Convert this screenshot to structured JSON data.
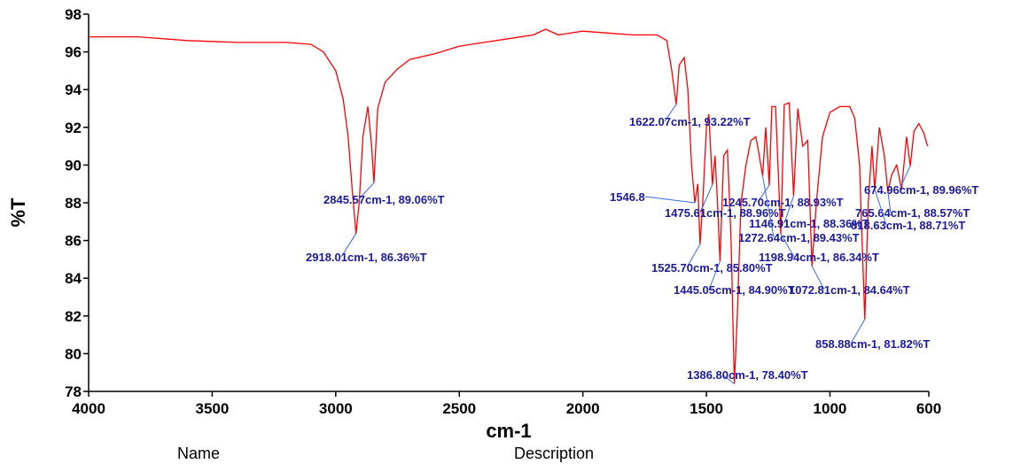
{
  "chart_data": {
    "type": "line",
    "xlabel": "cm-1",
    "ylabel": "%T",
    "footer_labels": [
      "Name",
      "Description"
    ],
    "xlim": [
      4000,
      600
    ],
    "xticks": [
      4000,
      3500,
      3000,
      2500,
      2000,
      1500,
      1000,
      600
    ],
    "ylim": [
      78,
      98
    ],
    "yticks": [
      78,
      80,
      82,
      84,
      86,
      88,
      90,
      92,
      94,
      96,
      98
    ],
    "x": [
      4000,
      3800,
      3600,
      3400,
      3200,
      3100,
      3050,
      3000,
      2970,
      2950,
      2935,
      2918.01,
      2905,
      2890,
      2870,
      2855,
      2845.57,
      2830,
      2800,
      2750,
      2700,
      2600,
      2500,
      2400,
      2300,
      2200,
      2150,
      2100,
      2000,
      1900,
      1800,
      1700,
      1660,
      1640,
      1622.07,
      1610,
      1590,
      1575,
      1560,
      1546.8,
      1535,
      1525.7,
      1515,
      1500,
      1490,
      1475.61,
      1465,
      1455,
      1445.05,
      1430,
      1415,
      1400,
      1386.8,
      1375,
      1360,
      1340,
      1320,
      1300,
      1290,
      1272.64,
      1260,
      1245.7,
      1235,
      1220,
      1198.94,
      1185,
      1165,
      1146.91,
      1130,
      1110,
      1090,
      1072.81,
      1055,
      1030,
      1000,
      960,
      920,
      900,
      880,
      870,
      858.88,
      845,
      830,
      818.63,
      800,
      780,
      765.64,
      750,
      730,
      710,
      690,
      674.96,
      660,
      640,
      620,
      605
    ],
    "series": [
      {
        "color": "#ff0000",
        "values": [
          96.8,
          96.8,
          96.6,
          96.5,
          96.5,
          96.4,
          96.0,
          95.0,
          93.5,
          91.5,
          89,
          86.36,
          88,
          91.5,
          93.1,
          91,
          89.06,
          93,
          94.4,
          95.1,
          95.6,
          95.9,
          96.3,
          96.5,
          96.7,
          96.9,
          97.2,
          96.9,
          97.1,
          97.0,
          96.9,
          96.9,
          96.6,
          95,
          93.22,
          95.3,
          95.7,
          94,
          90,
          88.0,
          89,
          85.8,
          88,
          92.0,
          92.7,
          88.96,
          90.5,
          88,
          84.9,
          90.5,
          90.8,
          86,
          78.4,
          82,
          88,
          90,
          91.3,
          91.5,
          90.8,
          89.43,
          92,
          88.93,
          93.1,
          93.1,
          86.34,
          93.2,
          93.3,
          88.36,
          93.0,
          91,
          91.3,
          84.64,
          88,
          91.5,
          92.8,
          93.1,
          93.1,
          92.5,
          90,
          86,
          81.82,
          88,
          91,
          88.71,
          92,
          90.5,
          88.57,
          89.5,
          90,
          88.7,
          91.5,
          89.96,
          91.8,
          92.2,
          91.7,
          91.0
        ]
      }
    ],
    "annotations": [
      {
        "x": 2845.57,
        "y": 89.06,
        "label": "2845.57cm-1, 89.06%T"
      },
      {
        "x": 2918.01,
        "y": 86.36,
        "label": "2918.01cm-1, 86.36%T"
      },
      {
        "x": 1622.07,
        "y": 93.22,
        "label": "1622.07cm-1, 93.22%T"
      },
      {
        "x": 1546.8,
        "y": 88.0,
        "label": "1546.8"
      },
      {
        "x": 1475.61,
        "y": 88.96,
        "label": "1475.61cm-1, 88.96%T"
      },
      {
        "x": 1245.7,
        "y": 88.93,
        "label": "1245.70cm-1, 88.93%T"
      },
      {
        "x": 1146.91,
        "y": 88.36,
        "label": "1146.91cm-1, 88.36%T"
      },
      {
        "x": 1272.64,
        "y": 89.43,
        "label": "1272.64cm-1, 89.43%T"
      },
      {
        "x": 1198.94,
        "y": 86.34,
        "label": "1198.94cm-1, 86.34%T"
      },
      {
        "x": 1525.7,
        "y": 85.8,
        "label": "1525.70cm-1, 85.80%T"
      },
      {
        "x": 1445.05,
        "y": 84.9,
        "label": "1445.05cm-1, 84.90%T"
      },
      {
        "x": 1072.81,
        "y": 84.64,
        "label": "1072.81cm-1, 84.64%T"
      },
      {
        "x": 858.88,
        "y": 81.82,
        "label": "858.88cm-1, 81.82%T"
      },
      {
        "x": 1386.8,
        "y": 78.4,
        "label": "1386.80cm-1, 78.40%T"
      },
      {
        "x": 674.96,
        "y": 89.96,
        "label": "674.96cm-1, 89.96%T"
      },
      {
        "x": 765.64,
        "y": 88.57,
        "label": "765.64cm-1, 88.57%T"
      },
      {
        "x": 818.63,
        "y": 88.71,
        "label": "818.63cm-1, 88.71%T"
      }
    ]
  }
}
